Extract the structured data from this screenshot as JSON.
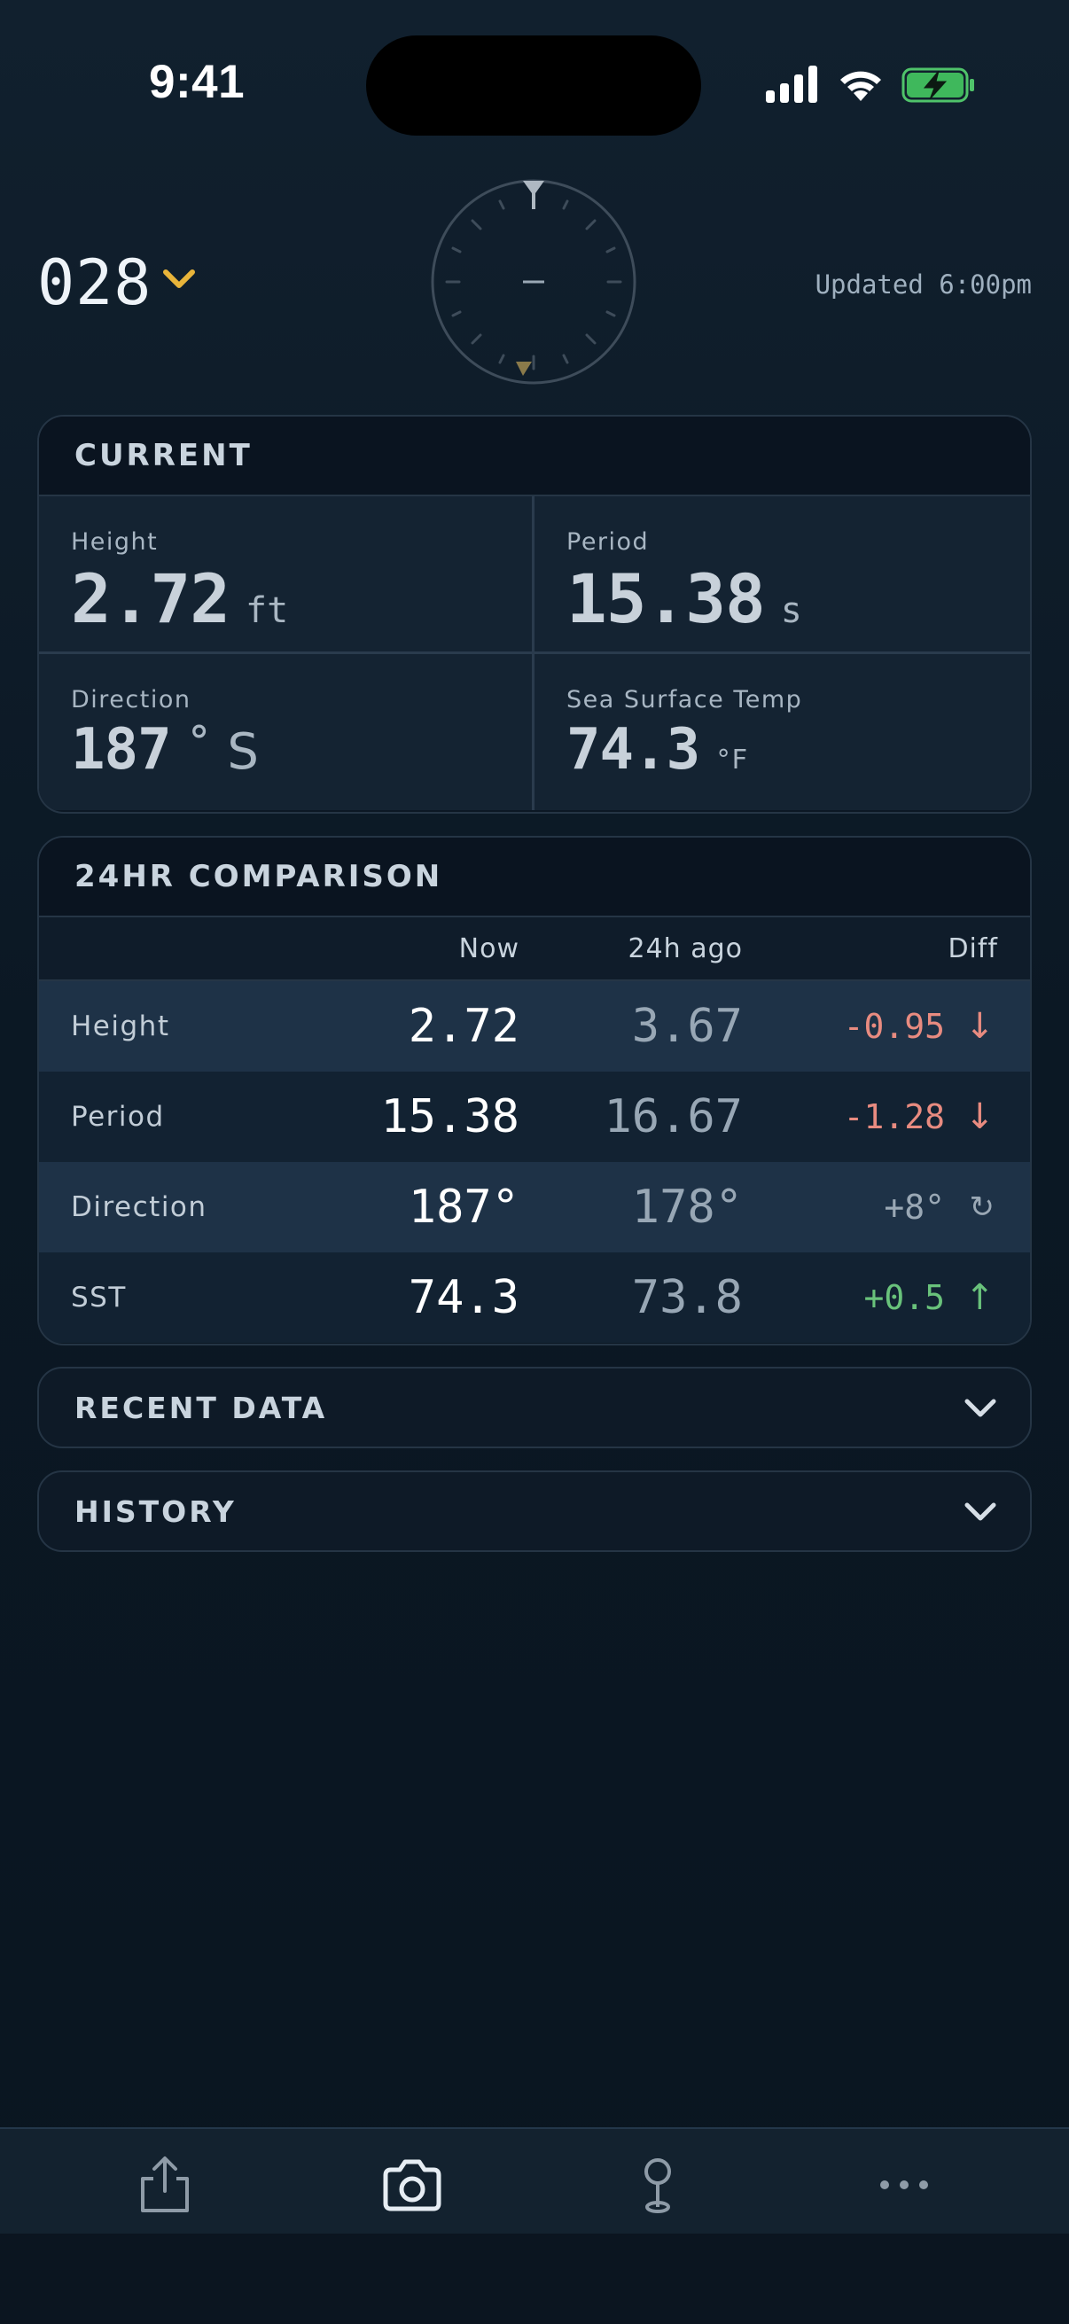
{
  "status": {
    "time": "9:41"
  },
  "header": {
    "station": "028",
    "updated": "Updated 6:00pm"
  },
  "current": {
    "title": "CURRENT",
    "height": {
      "label": "Height",
      "value": "2.72",
      "unit": "ft"
    },
    "period": {
      "label": "Period",
      "value": "15.38",
      "unit": "s"
    },
    "direction": {
      "label": "Direction",
      "value": "187",
      "unit": "˚ S"
    },
    "sst": {
      "label": "Sea Surface Temp",
      "value": "74.3",
      "unit": "°F"
    }
  },
  "comparison": {
    "title": "24HR COMPARISON",
    "columns": {
      "now": "Now",
      "ago": "24h ago",
      "diff": "Diff"
    },
    "rows": [
      {
        "label": "Height",
        "now": "2.72",
        "ago": "3.67",
        "diff": "-0.95",
        "arrow": "↓"
      },
      {
        "label": "Period",
        "now": "15.38",
        "ago": "16.67",
        "diff": "-1.28",
        "arrow": "↓"
      },
      {
        "label": "Direction",
        "now": "187°",
        "ago": "178°",
        "diff": "+8°",
        "arrow": "↻"
      },
      {
        "label": "SST",
        "now": "74.3",
        "ago": "73.8",
        "diff": "+0.5",
        "arrow": "↑"
      }
    ]
  },
  "sections": {
    "recent": "RECENT DATA",
    "history": "HISTORY"
  },
  "colors": {
    "accent": "#e8b43a",
    "negative": "#e88b80",
    "positive": "#69c27b",
    "neutral": "#9aa8b5"
  },
  "tabbar": {
    "icons": [
      "share-icon",
      "camera-icon",
      "map-pin-icon",
      "more-icon"
    ]
  }
}
